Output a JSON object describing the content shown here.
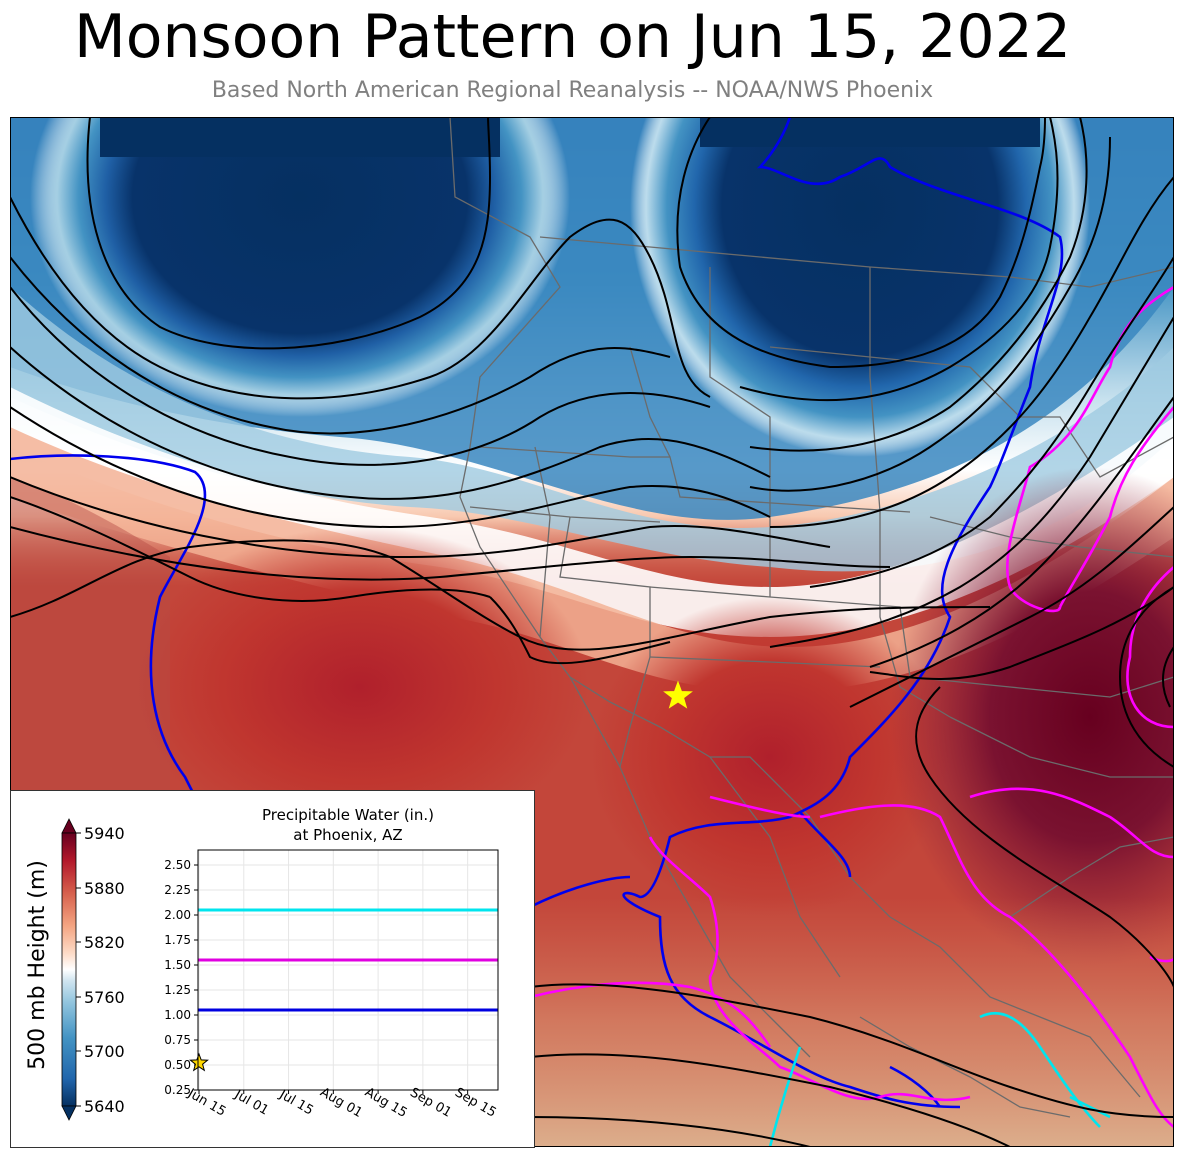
{
  "title": "Monsoon Pattern on Jun 15, 2022",
  "subtitle": "Based North American Regional Reanalysis -- NOAA/NWS Phoenix",
  "colorbar": {
    "label": "500 mb Height (m)",
    "ticks": [
      "5940",
      "5880",
      "5820",
      "5760",
      "5700",
      "5640"
    ],
    "min": 5640,
    "max": 5940,
    "extend": "both",
    "colors": [
      "#053061",
      "#2166ac",
      "#4393c3",
      "#92c5de",
      "#d1e5f0",
      "#ffffff",
      "#fddbc7",
      "#f4a582",
      "#d6604d",
      "#b2182b",
      "#67001f"
    ]
  },
  "marker": {
    "name": "Phoenix, AZ",
    "symbol": "star",
    "color": "#ffff00"
  },
  "contour_colors": {
    "heights": "#000000",
    "pw_low": "#0000ff",
    "pw_mid": "#ff00ff",
    "pw_high": "#00ffff"
  },
  "chart_data": {
    "type": "line",
    "title": "Precipitable Water (in.)\nat Phoenix, AZ",
    "title_lines": [
      "Precipitable Water (in.)",
      "at Phoenix, AZ"
    ],
    "x_ticks": [
      "Jun 15",
      "Jul 01",
      "Jul 15",
      "Aug 01",
      "Aug 15",
      "Sep 01",
      "Sep 15"
    ],
    "y_ticks": [
      "0.25",
      "0.50",
      "0.75",
      "1.00",
      "1.25",
      "1.50",
      "1.75",
      "2.00",
      "2.25",
      "2.50"
    ],
    "ylim": [
      0.25,
      2.65
    ],
    "grid": true,
    "reference_lines": [
      {
        "value": 2.05,
        "color": "#00e5ee"
      },
      {
        "value": 1.55,
        "color": "#e000e0"
      },
      {
        "value": 1.05,
        "color": "#0000e0"
      }
    ],
    "series": [
      {
        "x": [
          "Jun 15"
        ],
        "values": [
          0.52
        ],
        "marker": "star",
        "color": "#ffd700"
      }
    ]
  }
}
